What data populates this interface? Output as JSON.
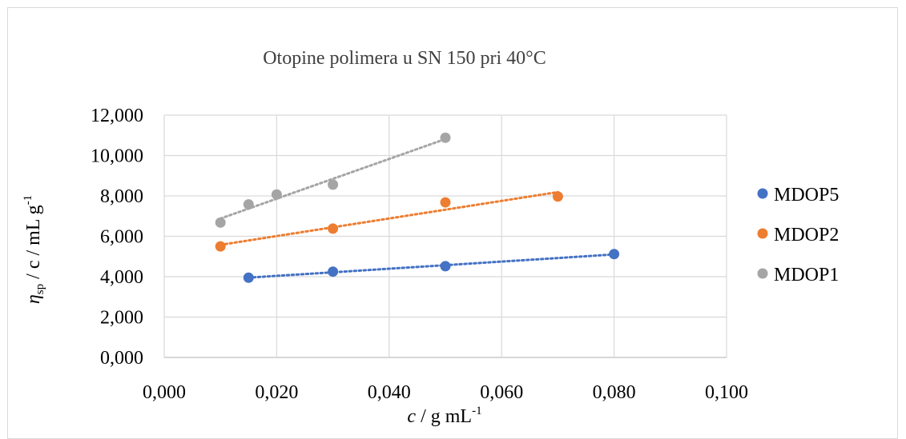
{
  "chart_data": {
    "type": "scatter",
    "title": "Otopine polimera u SN 150 pri 40°C",
    "xlabel": {
      "main": "c",
      "rest": " / g mL",
      "sup": "-1"
    },
    "ylabel": {
      "main": "η",
      "sub": "sp",
      "rest": " / c / mL g",
      "sup": "-1"
    },
    "xlim": [
      0,
      0.1
    ],
    "ylim": [
      0,
      12000
    ],
    "x_ticks": [
      0,
      0.02,
      0.04,
      0.06,
      0.08,
      0.1
    ],
    "x_tick_labels": [
      "0,000",
      "0,020",
      "0,040",
      "0,060",
      "0,080",
      "0,100"
    ],
    "y_ticks": [
      0,
      2000,
      4000,
      6000,
      8000,
      10000,
      12000
    ],
    "y_tick_labels": [
      "0,000",
      "2,000",
      "4,000",
      "6,000",
      "8,000",
      "10,000",
      "12,000"
    ],
    "grid": true,
    "legend_position": "right",
    "trendline": "linear, dotted",
    "series": [
      {
        "name": "MDOP5",
        "color": "#4472c4",
        "x": [
          0.015,
          0.03,
          0.05,
          0.08
        ],
        "y": [
          3950,
          4250,
          4520,
          5120
        ]
      },
      {
        "name": "MDOP2",
        "color": "#ed7d31",
        "x": [
          0.01,
          0.03,
          0.05,
          0.07
        ],
        "y": [
          5500,
          6380,
          7680,
          7970
        ]
      },
      {
        "name": "MDOP1",
        "color": "#a5a5a5",
        "x": [
          0.01,
          0.015,
          0.02,
          0.03,
          0.05
        ],
        "y": [
          6680,
          7580,
          8070,
          8560,
          10880
        ]
      }
    ]
  }
}
